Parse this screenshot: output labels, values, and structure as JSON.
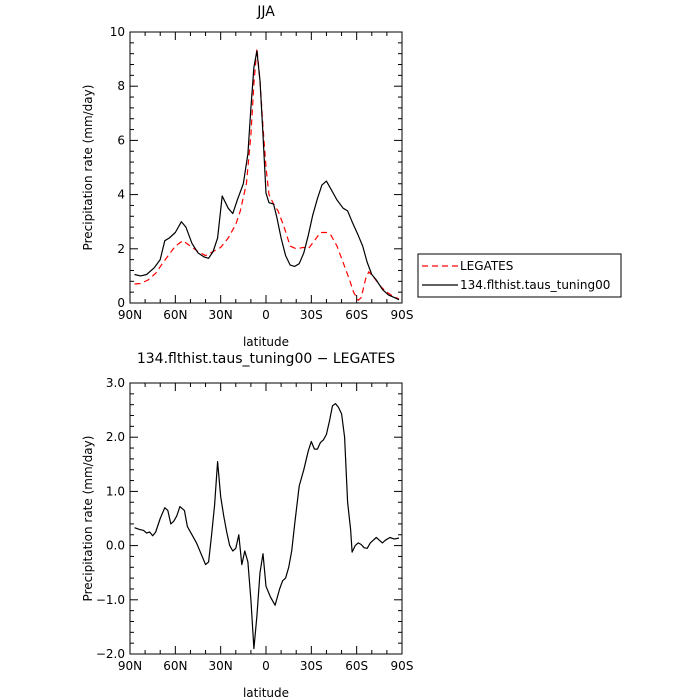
{
  "chart_data": [
    {
      "type": "line",
      "title": "JJA",
      "xlabel": "latitude",
      "ylabel": "Precipitation rate (mm/day)",
      "xlim": [
        -90,
        90
      ],
      "ylim": [
        0,
        10
      ],
      "x_tick_values": [
        -90,
        -60,
        -30,
        0,
        30,
        60,
        90
      ],
      "x_tick_labels": [
        "90N",
        "60N",
        "30N",
        "0",
        "30S",
        "60S",
        "90S"
      ],
      "y_tick_values": [
        0,
        2,
        4,
        6,
        8,
        10
      ],
      "y_tick_labels": [
        "0",
        "2",
        "4",
        "6",
        "8",
        "10"
      ],
      "legend_position": "right",
      "series": [
        {
          "name": "LEGATES",
          "color": "#ff0000",
          "dash": "dashed",
          "points": [
            [
              -87,
              0.7
            ],
            [
              -83,
              0.72
            ],
            [
              -78,
              0.85
            ],
            [
              -73,
              1.1
            ],
            [
              -68,
              1.5
            ],
            [
              -64,
              1.8
            ],
            [
              -60,
              2.1
            ],
            [
              -55,
              2.3
            ],
            [
              -50,
              2.1
            ],
            [
              -45,
              1.9
            ],
            [
              -40,
              1.75
            ],
            [
              -35,
              1.9
            ],
            [
              -30,
              2.05
            ],
            [
              -25,
              2.4
            ],
            [
              -20,
              2.9
            ],
            [
              -17,
              3.4
            ],
            [
              -13,
              4.4
            ],
            [
              -10,
              6.2
            ],
            [
              -8,
              8.1
            ],
            [
              -6,
              9.4
            ],
            [
              -4,
              8.2
            ],
            [
              -2,
              6.5
            ],
            [
              0,
              5.0
            ],
            [
              2,
              4.0
            ],
            [
              5,
              3.65
            ],
            [
              8,
              3.4
            ],
            [
              12,
              2.8
            ],
            [
              16,
              2.1
            ],
            [
              20,
              2.0
            ],
            [
              25,
              2.05
            ],
            [
              28,
              2.0
            ],
            [
              32,
              2.3
            ],
            [
              36,
              2.6
            ],
            [
              40,
              2.6
            ],
            [
              43,
              2.5
            ],
            [
              47,
              2.1
            ],
            [
              51,
              1.5
            ],
            [
              55,
              0.9
            ],
            [
              58,
              0.4
            ],
            [
              61,
              0.1
            ],
            [
              63,
              0.2
            ],
            [
              66,
              0.9
            ],
            [
              68,
              1.15
            ],
            [
              72,
              0.9
            ],
            [
              76,
              0.6
            ],
            [
              80,
              0.4
            ],
            [
              84,
              0.25
            ],
            [
              88,
              0.15
            ]
          ]
        },
        {
          "name": "134.flthist.taus_tuning00",
          "color": "#000000",
          "dash": "solid",
          "points": [
            [
              -87,
              1.05
            ],
            [
              -83,
              1.0
            ],
            [
              -79,
              1.05
            ],
            [
              -74,
              1.3
            ],
            [
              -70,
              1.6
            ],
            [
              -67,
              2.3
            ],
            [
              -64,
              2.4
            ],
            [
              -60,
              2.6
            ],
            [
              -56,
              3.0
            ],
            [
              -53,
              2.8
            ],
            [
              -49,
              2.2
            ],
            [
              -45,
              1.85
            ],
            [
              -41,
              1.7
            ],
            [
              -38,
              1.65
            ],
            [
              -35,
              1.9
            ],
            [
              -32,
              2.4
            ],
            [
              -29,
              3.95
            ],
            [
              -25,
              3.5
            ],
            [
              -22,
              3.3
            ],
            [
              -19,
              3.8
            ],
            [
              -15,
              4.4
            ],
            [
              -12,
              5.5
            ],
            [
              -10,
              7.2
            ],
            [
              -8,
              8.7
            ],
            [
              -6,
              9.3
            ],
            [
              -4,
              8.2
            ],
            [
              -2,
              6.2
            ],
            [
              0,
              4.05
            ],
            [
              2,
              3.7
            ],
            [
              5,
              3.65
            ],
            [
              7,
              3.2
            ],
            [
              10,
              2.4
            ],
            [
              13,
              1.75
            ],
            [
              16,
              1.4
            ],
            [
              19,
              1.35
            ],
            [
              22,
              1.45
            ],
            [
              25,
              1.85
            ],
            [
              28,
              2.5
            ],
            [
              31,
              3.25
            ],
            [
              34,
              3.85
            ],
            [
              37,
              4.35
            ],
            [
              40,
              4.5
            ],
            [
              43,
              4.2
            ],
            [
              47,
              3.8
            ],
            [
              51,
              3.5
            ],
            [
              54,
              3.4
            ],
            [
              57,
              3.0
            ],
            [
              61,
              2.5
            ],
            [
              64,
              2.1
            ],
            [
              67,
              1.5
            ],
            [
              70,
              1.05
            ],
            [
              73,
              0.85
            ],
            [
              77,
              0.5
            ],
            [
              81,
              0.3
            ],
            [
              85,
              0.2
            ],
            [
              88,
              0.12
            ]
          ]
        }
      ]
    },
    {
      "type": "line",
      "title": "134.flthist.taus_tuning00 − LEGATES",
      "xlabel": "latitude",
      "ylabel": "Precipitation rate (mm/day)",
      "xlim": [
        -90,
        90
      ],
      "ylim": [
        -2,
        3
      ],
      "x_tick_values": [
        -90,
        -60,
        -30,
        0,
        30,
        60,
        90
      ],
      "x_tick_labels": [
        "90N",
        "60N",
        "30N",
        "0",
        "30S",
        "60S",
        "90S"
      ],
      "y_tick_values": [
        -2,
        -1,
        0,
        1,
        2,
        3
      ],
      "y_tick_labels": [
        "−2.0",
        "−1.0",
        "0.0",
        "1.0",
        "2.0",
        "3.0"
      ],
      "series": [
        {
          "color": "#000000",
          "dash": "solid",
          "points": [
            [
              -87,
              0.33
            ],
            [
              -84,
              0.3
            ],
            [
              -81,
              0.28
            ],
            [
              -79,
              0.23
            ],
            [
              -77,
              0.25
            ],
            [
              -75,
              0.18
            ],
            [
              -73,
              0.25
            ],
            [
              -70,
              0.5
            ],
            [
              -67,
              0.7
            ],
            [
              -65,
              0.65
            ],
            [
              -63,
              0.4
            ],
            [
              -61,
              0.45
            ],
            [
              -59,
              0.55
            ],
            [
              -57,
              0.72
            ],
            [
              -54,
              0.65
            ],
            [
              -52,
              0.35
            ],
            [
              -49,
              0.2
            ],
            [
              -46,
              0.05
            ],
            [
              -43,
              -0.15
            ],
            [
              -40,
              -0.35
            ],
            [
              -38,
              -0.3
            ],
            [
              -36,
              0.2
            ],
            [
              -34,
              0.75
            ],
            [
              -32,
              1.55
            ],
            [
              -30,
              0.9
            ],
            [
              -28,
              0.55
            ],
            [
              -26,
              0.25
            ],
            [
              -24,
              0.0
            ],
            [
              -22,
              -0.1
            ],
            [
              -20,
              -0.05
            ],
            [
              -18,
              0.2
            ],
            [
              -16,
              -0.35
            ],
            [
              -14,
              -0.1
            ],
            [
              -12,
              -0.3
            ],
            [
              -10,
              -1.0
            ],
            [
              -8,
              -1.9
            ],
            [
              -6,
              -1.3
            ],
            [
              -4,
              -0.5
            ],
            [
              -2,
              -0.15
            ],
            [
              0,
              -0.75
            ],
            [
              3,
              -0.95
            ],
            [
              6,
              -1.1
            ],
            [
              9,
              -0.8
            ],
            [
              11,
              -0.65
            ],
            [
              13,
              -0.6
            ],
            [
              15,
              -0.4
            ],
            [
              17,
              -0.1
            ],
            [
              19,
              0.4
            ],
            [
              22,
              1.1
            ],
            [
              25,
              1.4
            ],
            [
              28,
              1.75
            ],
            [
              30,
              1.92
            ],
            [
              32,
              1.78
            ],
            [
              34,
              1.78
            ],
            [
              36,
              1.9
            ],
            [
              38,
              1.95
            ],
            [
              40,
              2.05
            ],
            [
              42,
              2.3
            ],
            [
              44,
              2.58
            ],
            [
              46,
              2.62
            ],
            [
              48,
              2.55
            ],
            [
              50,
              2.43
            ],
            [
              52,
              2.0
            ],
            [
              54,
              0.8
            ],
            [
              56,
              0.3
            ],
            [
              57,
              -0.12
            ],
            [
              59,
              0.0
            ],
            [
              61,
              0.05
            ],
            [
              63,
              0.02
            ],
            [
              65,
              -0.04
            ],
            [
              67,
              -0.05
            ],
            [
              69,
              0.05
            ],
            [
              71,
              0.1
            ],
            [
              73,
              0.15
            ],
            [
              75,
              0.1
            ],
            [
              77,
              0.05
            ],
            [
              79,
              0.1
            ],
            [
              82,
              0.15
            ],
            [
              85,
              0.12
            ],
            [
              88,
              0.14
            ]
          ]
        }
      ]
    }
  ]
}
